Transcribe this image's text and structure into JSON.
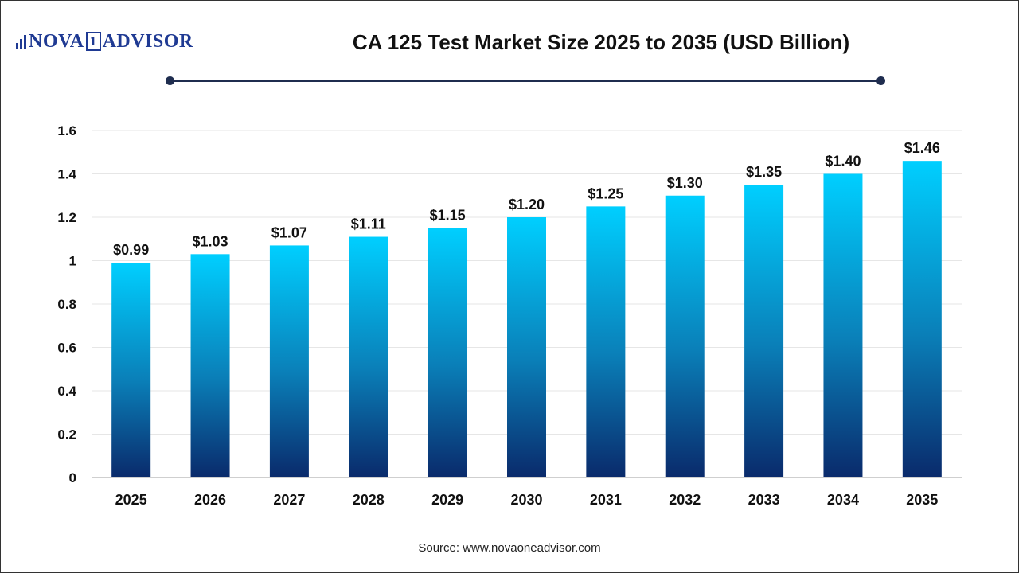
{
  "brand": {
    "logo_left": "NOVA",
    "logo_mark": "1",
    "logo_right": "ADVISOR"
  },
  "chart_data": {
    "type": "bar",
    "title": "CA 125 Test Market Size 2025 to 2035 (USD Billion)",
    "categories": [
      "2025",
      "2026",
      "2027",
      "2028",
      "2029",
      "2030",
      "2031",
      "2032",
      "2033",
      "2034",
      "2035"
    ],
    "values": [
      0.99,
      1.03,
      1.07,
      1.11,
      1.15,
      1.2,
      1.25,
      1.3,
      1.35,
      1.4,
      1.46
    ],
    "data_labels": [
      "$0.99",
      "$1.03",
      "$1.07",
      "$1.11",
      "$1.15",
      "$1.20",
      "$1.25",
      "$1.30",
      "$1.35",
      "$1.40",
      "$1.46"
    ],
    "y_ticks": [
      "0",
      "0.2",
      "0.4",
      "0.6",
      "0.8",
      "1",
      "1.2",
      "1.4",
      "1.6"
    ],
    "ylim": [
      0,
      1.6
    ],
    "grid": true,
    "colors": {
      "bar_top": "#00cfff",
      "bar_mid": "#0a7fb8",
      "bar_bottom": "#0a2a6b",
      "grid": "#e6e6e6",
      "axis": "#bfbfbf"
    }
  },
  "source": "Source: www.novaoneadvisor.com"
}
